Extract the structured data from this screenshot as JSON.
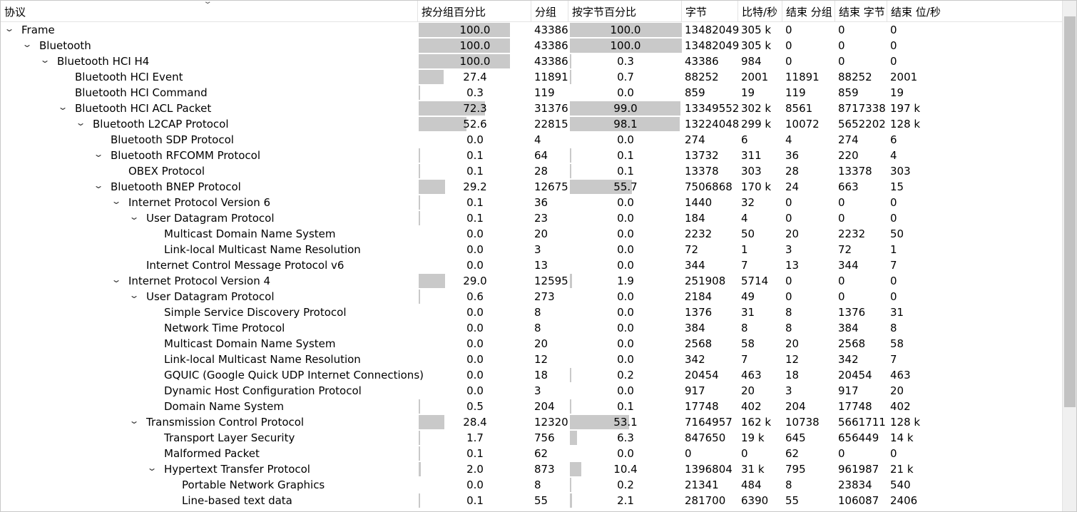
{
  "columns": {
    "protocol": "协议",
    "pct_packets": "按分组百分比",
    "packets": "分组",
    "pct_bytes": "按字节百分比",
    "bytes": "字节",
    "bits_s": "比特/秒",
    "end_packets": "结束 分组",
    "end_bytes": "结束 字节",
    "end_bits_s": "结束 位/秒"
  },
  "icons": {
    "sort": "chevron-down-icon",
    "expanded": "expanded-arrow-icon"
  },
  "rows": [
    {
      "name": "Frame",
      "depth": 0,
      "expander": true,
      "pct_packets": "100.0",
      "pct_packets_val": 100.0,
      "packets": "43386",
      "pct_bytes": "100.0",
      "pct_bytes_val": 100.0,
      "bytes": "13482049",
      "bits_s": "305 k",
      "end_packets": "0",
      "end_bytes": "0",
      "end_bits_s": "0"
    },
    {
      "name": "Bluetooth",
      "depth": 1,
      "expander": true,
      "pct_packets": "100.0",
      "pct_packets_val": 100.0,
      "packets": "43386",
      "pct_bytes": "100.0",
      "pct_bytes_val": 100.0,
      "bytes": "13482049",
      "bits_s": "305 k",
      "end_packets": "0",
      "end_bytes": "0",
      "end_bits_s": "0"
    },
    {
      "name": "Bluetooth HCI H4",
      "depth": 2,
      "expander": true,
      "pct_packets": "100.0",
      "pct_packets_val": 100.0,
      "packets": "43386",
      "pct_bytes": "0.3",
      "pct_bytes_val": 0.3,
      "bytes": "43386",
      "bits_s": "984",
      "end_packets": "0",
      "end_bytes": "0",
      "end_bits_s": "0"
    },
    {
      "name": "Bluetooth HCI Event",
      "depth": 3,
      "expander": false,
      "pct_packets": "27.4",
      "pct_packets_val": 27.4,
      "packets": "11891",
      "pct_bytes": "0.7",
      "pct_bytes_val": 0.7,
      "bytes": "88252",
      "bits_s": "2001",
      "end_packets": "11891",
      "end_bytes": "88252",
      "end_bits_s": "2001"
    },
    {
      "name": "Bluetooth HCI Command",
      "depth": 3,
      "expander": false,
      "pct_packets": "0.3",
      "pct_packets_val": 0.3,
      "packets": "119",
      "pct_bytes": "0.0",
      "pct_bytes_val": 0.0,
      "bytes": "859",
      "bits_s": "19",
      "end_packets": "119",
      "end_bytes": "859",
      "end_bits_s": "19"
    },
    {
      "name": "Bluetooth HCI ACL Packet",
      "depth": 3,
      "expander": true,
      "pct_packets": "72.3",
      "pct_packets_val": 72.3,
      "packets": "31376",
      "pct_bytes": "99.0",
      "pct_bytes_val": 99.0,
      "bytes": "13349552",
      "bits_s": "302 k",
      "end_packets": "8561",
      "end_bytes": "8717338",
      "end_bits_s": "197 k"
    },
    {
      "name": "Bluetooth L2CAP Protocol",
      "depth": 4,
      "expander": true,
      "pct_packets": "52.6",
      "pct_packets_val": 52.6,
      "packets": "22815",
      "pct_bytes": "98.1",
      "pct_bytes_val": 98.1,
      "bytes": "13224048",
      "bits_s": "299 k",
      "end_packets": "10072",
      "end_bytes": "5652202",
      "end_bits_s": "128 k"
    },
    {
      "name": "Bluetooth SDP Protocol",
      "depth": 5,
      "expander": false,
      "pct_packets": "0.0",
      "pct_packets_val": 0.0,
      "packets": "4",
      "pct_bytes": "0.0",
      "pct_bytes_val": 0.0,
      "bytes": "274",
      "bits_s": "6",
      "end_packets": "4",
      "end_bytes": "274",
      "end_bits_s": "6"
    },
    {
      "name": "Bluetooth RFCOMM Protocol",
      "depth": 5,
      "expander": true,
      "pct_packets": "0.1",
      "pct_packets_val": 0.1,
      "packets": "64",
      "pct_bytes": "0.1",
      "pct_bytes_val": 0.1,
      "bytes": "13732",
      "bits_s": "311",
      "end_packets": "36",
      "end_bytes": "220",
      "end_bits_s": "4"
    },
    {
      "name": "OBEX Protocol",
      "depth": 6,
      "expander": false,
      "pct_packets": "0.1",
      "pct_packets_val": 0.1,
      "packets": "28",
      "pct_bytes": "0.1",
      "pct_bytes_val": 0.1,
      "bytes": "13378",
      "bits_s": "303",
      "end_packets": "28",
      "end_bytes": "13378",
      "end_bits_s": "303"
    },
    {
      "name": "Bluetooth BNEP Protocol",
      "depth": 5,
      "expander": true,
      "pct_packets": "29.2",
      "pct_packets_val": 29.2,
      "packets": "12675",
      "pct_bytes": "55.7",
      "pct_bytes_val": 55.7,
      "bytes": "7506868",
      "bits_s": "170 k",
      "end_packets": "24",
      "end_bytes": "663",
      "end_bits_s": "15"
    },
    {
      "name": "Internet Protocol Version 6",
      "depth": 6,
      "expander": true,
      "pct_packets": "0.1",
      "pct_packets_val": 0.1,
      "packets": "36",
      "pct_bytes": "0.0",
      "pct_bytes_val": 0.0,
      "bytes": "1440",
      "bits_s": "32",
      "end_packets": "0",
      "end_bytes": "0",
      "end_bits_s": "0"
    },
    {
      "name": "User Datagram Protocol",
      "depth": 7,
      "expander": true,
      "pct_packets": "0.1",
      "pct_packets_val": 0.1,
      "packets": "23",
      "pct_bytes": "0.0",
      "pct_bytes_val": 0.0,
      "bytes": "184",
      "bits_s": "4",
      "end_packets": "0",
      "end_bytes": "0",
      "end_bits_s": "0"
    },
    {
      "name": "Multicast Domain Name System",
      "depth": 8,
      "expander": false,
      "pct_packets": "0.0",
      "pct_packets_val": 0.0,
      "packets": "20",
      "pct_bytes": "0.0",
      "pct_bytes_val": 0.0,
      "bytes": "2232",
      "bits_s": "50",
      "end_packets": "20",
      "end_bytes": "2232",
      "end_bits_s": "50"
    },
    {
      "name": "Link-local Multicast Name Resolution",
      "depth": 8,
      "expander": false,
      "pct_packets": "0.0",
      "pct_packets_val": 0.0,
      "packets": "3",
      "pct_bytes": "0.0",
      "pct_bytes_val": 0.0,
      "bytes": "72",
      "bits_s": "1",
      "end_packets": "3",
      "end_bytes": "72",
      "end_bits_s": "1"
    },
    {
      "name": "Internet Control Message Protocol v6",
      "depth": 7,
      "expander": false,
      "pct_packets": "0.0",
      "pct_packets_val": 0.0,
      "packets": "13",
      "pct_bytes": "0.0",
      "pct_bytes_val": 0.0,
      "bytes": "344",
      "bits_s": "7",
      "end_packets": "13",
      "end_bytes": "344",
      "end_bits_s": "7"
    },
    {
      "name": "Internet Protocol Version 4",
      "depth": 6,
      "expander": true,
      "pct_packets": "29.0",
      "pct_packets_val": 29.0,
      "packets": "12595",
      "pct_bytes": "1.9",
      "pct_bytes_val": 1.9,
      "bytes": "251908",
      "bits_s": "5714",
      "end_packets": "0",
      "end_bytes": "0",
      "end_bits_s": "0"
    },
    {
      "name": "User Datagram Protocol",
      "depth": 7,
      "expander": true,
      "pct_packets": "0.6",
      "pct_packets_val": 0.6,
      "packets": "273",
      "pct_bytes": "0.0",
      "pct_bytes_val": 0.0,
      "bytes": "2184",
      "bits_s": "49",
      "end_packets": "0",
      "end_bytes": "0",
      "end_bits_s": "0"
    },
    {
      "name": "Simple Service Discovery Protocol",
      "depth": 8,
      "expander": false,
      "pct_packets": "0.0",
      "pct_packets_val": 0.0,
      "packets": "8",
      "pct_bytes": "0.0",
      "pct_bytes_val": 0.0,
      "bytes": "1376",
      "bits_s": "31",
      "end_packets": "8",
      "end_bytes": "1376",
      "end_bits_s": "31"
    },
    {
      "name": "Network Time Protocol",
      "depth": 8,
      "expander": false,
      "pct_packets": "0.0",
      "pct_packets_val": 0.0,
      "packets": "8",
      "pct_bytes": "0.0",
      "pct_bytes_val": 0.0,
      "bytes": "384",
      "bits_s": "8",
      "end_packets": "8",
      "end_bytes": "384",
      "end_bits_s": "8"
    },
    {
      "name": "Multicast Domain Name System",
      "depth": 8,
      "expander": false,
      "pct_packets": "0.0",
      "pct_packets_val": 0.0,
      "packets": "20",
      "pct_bytes": "0.0",
      "pct_bytes_val": 0.0,
      "bytes": "2568",
      "bits_s": "58",
      "end_packets": "20",
      "end_bytes": "2568",
      "end_bits_s": "58"
    },
    {
      "name": "Link-local Multicast Name Resolution",
      "depth": 8,
      "expander": false,
      "pct_packets": "0.0",
      "pct_packets_val": 0.0,
      "packets": "12",
      "pct_bytes": "0.0",
      "pct_bytes_val": 0.0,
      "bytes": "342",
      "bits_s": "7",
      "end_packets": "12",
      "end_bytes": "342",
      "end_bits_s": "7"
    },
    {
      "name": "GQUIC (Google Quick UDP Internet Connections)",
      "depth": 8,
      "expander": false,
      "pct_packets": "0.0",
      "pct_packets_val": 0.0,
      "packets": "18",
      "pct_bytes": "0.2",
      "pct_bytes_val": 0.2,
      "bytes": "20454",
      "bits_s": "463",
      "end_packets": "18",
      "end_bytes": "20454",
      "end_bits_s": "463"
    },
    {
      "name": "Dynamic Host Configuration Protocol",
      "depth": 8,
      "expander": false,
      "pct_packets": "0.0",
      "pct_packets_val": 0.0,
      "packets": "3",
      "pct_bytes": "0.0",
      "pct_bytes_val": 0.0,
      "bytes": "917",
      "bits_s": "20",
      "end_packets": "3",
      "end_bytes": "917",
      "end_bits_s": "20"
    },
    {
      "name": "Domain Name System",
      "depth": 8,
      "expander": false,
      "pct_packets": "0.5",
      "pct_packets_val": 0.5,
      "packets": "204",
      "pct_bytes": "0.1",
      "pct_bytes_val": 0.1,
      "bytes": "17748",
      "bits_s": "402",
      "end_packets": "204",
      "end_bytes": "17748",
      "end_bits_s": "402"
    },
    {
      "name": "Transmission Control Protocol",
      "depth": 7,
      "expander": true,
      "pct_packets": "28.4",
      "pct_packets_val": 28.4,
      "packets": "12320",
      "pct_bytes": "53.1",
      "pct_bytes_val": 53.1,
      "bytes": "7164957",
      "bits_s": "162 k",
      "end_packets": "10738",
      "end_bytes": "5661711",
      "end_bits_s": "128 k"
    },
    {
      "name": "Transport Layer Security",
      "depth": 8,
      "expander": false,
      "pct_packets": "1.7",
      "pct_packets_val": 1.7,
      "packets": "756",
      "pct_bytes": "6.3",
      "pct_bytes_val": 6.3,
      "bytes": "847650",
      "bits_s": "19 k",
      "end_packets": "645",
      "end_bytes": "656449",
      "end_bits_s": "14 k"
    },
    {
      "name": "Malformed Packet",
      "depth": 8,
      "expander": false,
      "pct_packets": "0.1",
      "pct_packets_val": 0.1,
      "packets": "62",
      "pct_bytes": "0.0",
      "pct_bytes_val": 0.0,
      "bytes": "0",
      "bits_s": "0",
      "end_packets": "62",
      "end_bytes": "0",
      "end_bits_s": "0"
    },
    {
      "name": "Hypertext Transfer Protocol",
      "depth": 8,
      "expander": true,
      "pct_packets": "2.0",
      "pct_packets_val": 2.0,
      "packets": "873",
      "pct_bytes": "10.4",
      "pct_bytes_val": 10.4,
      "bytes": "1396804",
      "bits_s": "31 k",
      "end_packets": "795",
      "end_bytes": "961987",
      "end_bits_s": "21 k"
    },
    {
      "name": "Portable Network Graphics",
      "depth": 9,
      "expander": false,
      "pct_packets": "0.0",
      "pct_packets_val": 0.0,
      "packets": "8",
      "pct_bytes": "0.2",
      "pct_bytes_val": 0.2,
      "bytes": "21341",
      "bits_s": "484",
      "end_packets": "8",
      "end_bytes": "23834",
      "end_bits_s": "540"
    },
    {
      "name": "Line-based text data",
      "depth": 9,
      "expander": false,
      "pct_packets": "0.1",
      "pct_packets_val": 0.1,
      "packets": "55",
      "pct_bytes": "2.1",
      "pct_bytes_val": 2.1,
      "bytes": "281700",
      "bits_s": "6390",
      "end_packets": "55",
      "end_bytes": "106087",
      "end_bits_s": "2406"
    }
  ]
}
